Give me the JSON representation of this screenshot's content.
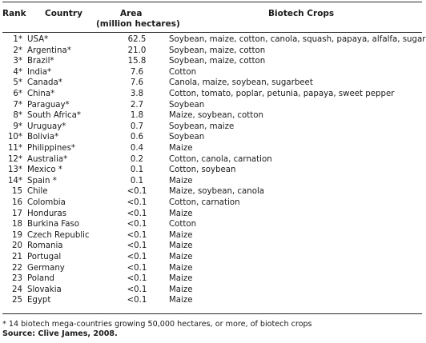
{
  "table": {
    "headers": {
      "rank": "Rank",
      "country": "Country",
      "area_line1": "Area",
      "area_line2": "(million hectares)",
      "crops": "Biotech Crops"
    },
    "rows": [
      {
        "rank": "1*",
        "country": "USA*",
        "area": "62.5",
        "crops": "Soybean, maize, cotton, canola, squash, papaya, alfalfa, sugarbeet"
      },
      {
        "rank": "2*",
        "country": "Argentina*",
        "area": "21.0",
        "crops": "Soybean, maize, cotton"
      },
      {
        "rank": "3*",
        "country": "Brazil*",
        "area": "15.8",
        "crops": "Soybean, maize, cotton"
      },
      {
        "rank": "4*",
        "country": "India*",
        "area": "7.6",
        "crops": "Cotton"
      },
      {
        "rank": "5*",
        "country": "Canada*",
        "area": "7.6",
        "crops": "Canola, maize, soybean, sugarbeet"
      },
      {
        "rank": "6*",
        "country": "China*",
        "area": "3.8",
        "crops": "Cotton, tomato, poplar, petunia, papaya, sweet pepper"
      },
      {
        "rank": "7*",
        "country": "Paraguay*",
        "area": "2.7",
        "crops": "Soybean"
      },
      {
        "rank": "8*",
        "country": "South Africa*",
        "area": "1.8",
        "crops": "Maize, soybean, cotton"
      },
      {
        "rank": "9*",
        "country": "Uruguay*",
        "area": "0.7",
        "crops": "Soybean, maize"
      },
      {
        "rank": "10*",
        "country": "Bolivia*",
        "area": "0.6",
        "crops": "Soybean"
      },
      {
        "rank": "11*",
        "country": "Philippines*",
        "area": "0.4",
        "crops": "Maize"
      },
      {
        "rank": "12*",
        "country": "Australia*",
        "area": "0.2",
        "crops": "Cotton, canola, carnation"
      },
      {
        "rank": "13*",
        "country": "Mexico *",
        "area": "0.1",
        "crops": "Cotton, soybean"
      },
      {
        "rank": "14*",
        "country": "Spain *",
        "area": "0.1",
        "crops": "Maize"
      },
      {
        "rank": "15",
        "country": "Chile",
        "area": "<0.1",
        "crops": "Maize, soybean, canola"
      },
      {
        "rank": "16",
        "country": "Colombia",
        "area": "<0.1",
        "crops": "Cotton, carnation"
      },
      {
        "rank": "17",
        "country": "Honduras",
        "area": "<0.1",
        "crops": "Maize"
      },
      {
        "rank": "18",
        "country": "Burkina Faso",
        "area": "<0.1",
        "crops": "Cotton"
      },
      {
        "rank": "19",
        "country": "Czech Republic",
        "area": "<0.1",
        "crops": "Maize"
      },
      {
        "rank": "20",
        "country": "Romania",
        "area": "<0.1",
        "crops": "Maize"
      },
      {
        "rank": "21",
        "country": "Portugal",
        "area": "<0.1",
        "crops": "Maize"
      },
      {
        "rank": "22",
        "country": "Germany",
        "area": "<0.1",
        "crops": "Maize"
      },
      {
        "rank": "23",
        "country": "Poland",
        "area": "<0.1",
        "crops": "Maize"
      },
      {
        "rank": "24",
        "country": "Slovakia",
        "area": "<0.1",
        "crops": "Maize"
      },
      {
        "rank": "25",
        "country": "Egypt",
        "area": "<0.1",
        "crops": "Maize"
      }
    ]
  },
  "footnote": "* 14 biotech mega-countries growing 50,000 hectares, or more, of biotech crops",
  "source": "Source: Clive James, 2008."
}
